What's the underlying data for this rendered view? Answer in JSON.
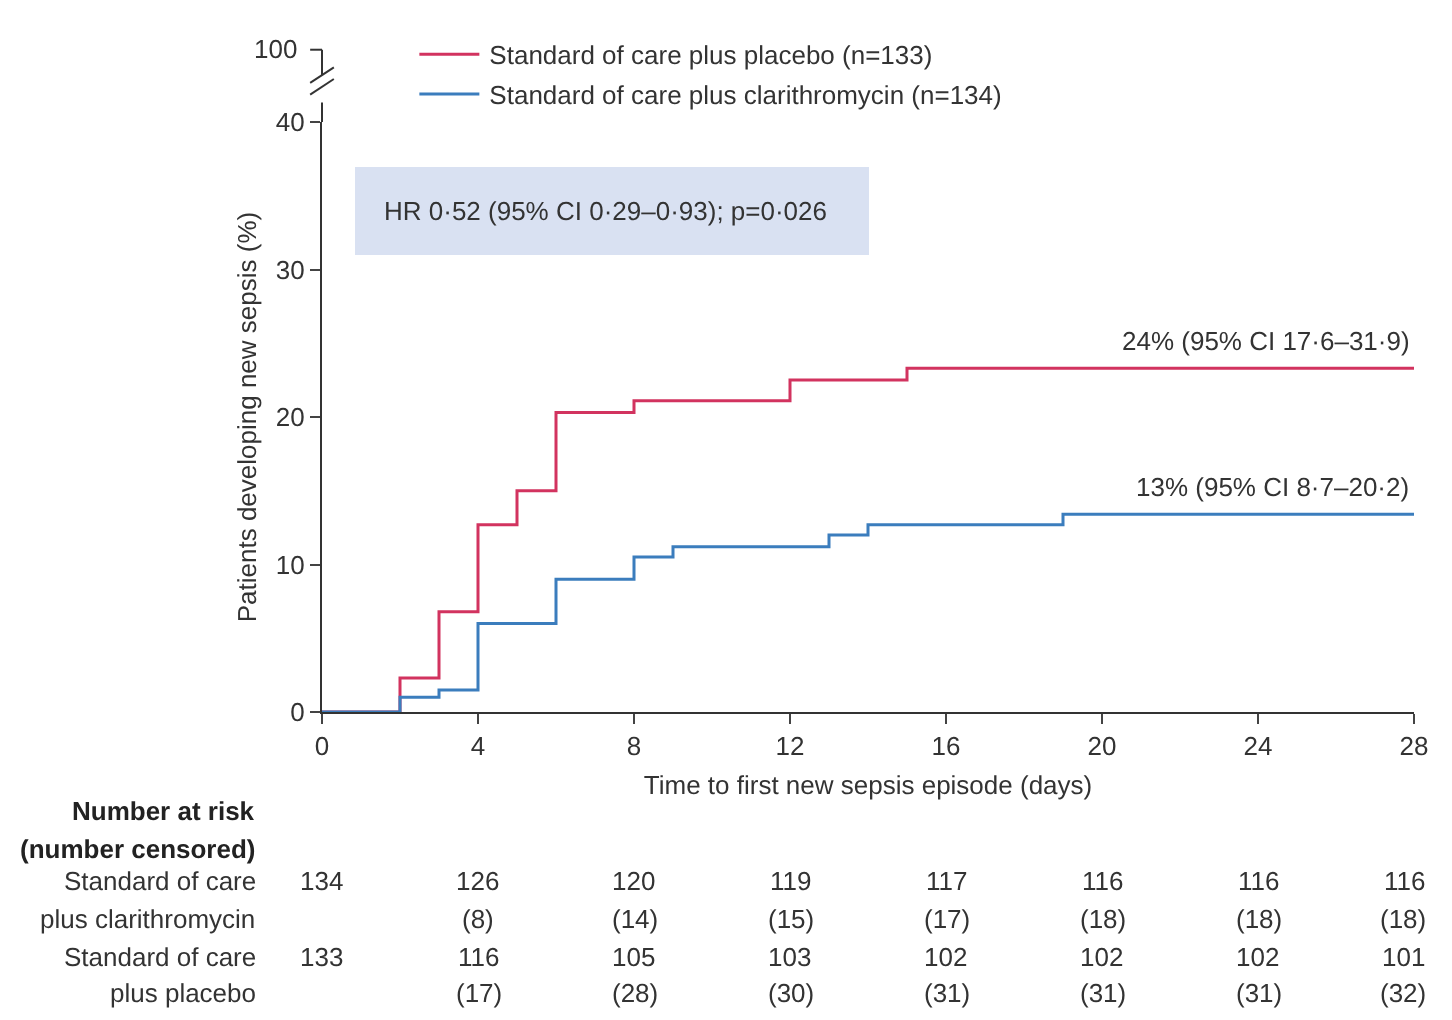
{
  "chart_data": {
    "type": "step",
    "xlabel": "Time to first new sepsis episode (days)",
    "ylabel": "Patients developing new sepsis (%)",
    "xlim": [
      0,
      28
    ],
    "xticks": [
      0,
      4,
      8,
      12,
      16,
      20,
      24,
      28
    ],
    "ylim": [
      0,
      40
    ],
    "yticks": [
      0,
      10,
      20,
      30,
      40
    ],
    "legend": "top left",
    "marker": "none",
    "line_style": "solid",
    "series": [
      {
        "name": "Standard of care plus placebo (n=133)",
        "color": "#d2335f",
        "x": [
          0,
          2,
          3,
          4,
          5,
          6,
          8,
          12,
          15,
          28
        ],
        "values": [
          0,
          2.3,
          6.8,
          12.7,
          15.0,
          20.3,
          21.1,
          22.5,
          23.3,
          23.3
        ]
      },
      {
        "name": "Standard of care plus clarithromycin (n=134)",
        "color": "#3b7dbd",
        "x": [
          0,
          2,
          3,
          4,
          6,
          8,
          9,
          13,
          14,
          19,
          28
        ],
        "values": [
          0,
          1.0,
          1.5,
          6.0,
          9.0,
          10.5,
          11.2,
          12.0,
          12.7,
          13.4,
          13.4
        ]
      }
    ],
    "annotations": [
      "HR 0·52 (95% CI 0·29–0·93); p=0·026",
      {
        "text": "24% (95% CI 17·6–31·9)",
        "x": 28,
        "y": 23.3
      },
      {
        "text": "13% (95% CI 8·7–20·2)",
        "x": 28,
        "y": 13.4
      },
      "100",
      "Number at risk",
      "(number censored)",
      "Standard of care",
      "plus clarithromycin",
      "Standard of care",
      "plus placebo",
      "134",
      "126",
      "120",
      "119",
      "117",
      "116",
      "116",
      "116",
      "(8)",
      "(14)",
      "(15)",
      "(17)",
      "(18)",
      "(18)",
      "(18)",
      "133",
      "116",
      "105",
      "103",
      "102",
      "102",
      "102",
      "101",
      "(17)",
      "(28)",
      "(30)",
      "(31)",
      "(31)",
      "(31)",
      "(32)"
    ]
  }
}
